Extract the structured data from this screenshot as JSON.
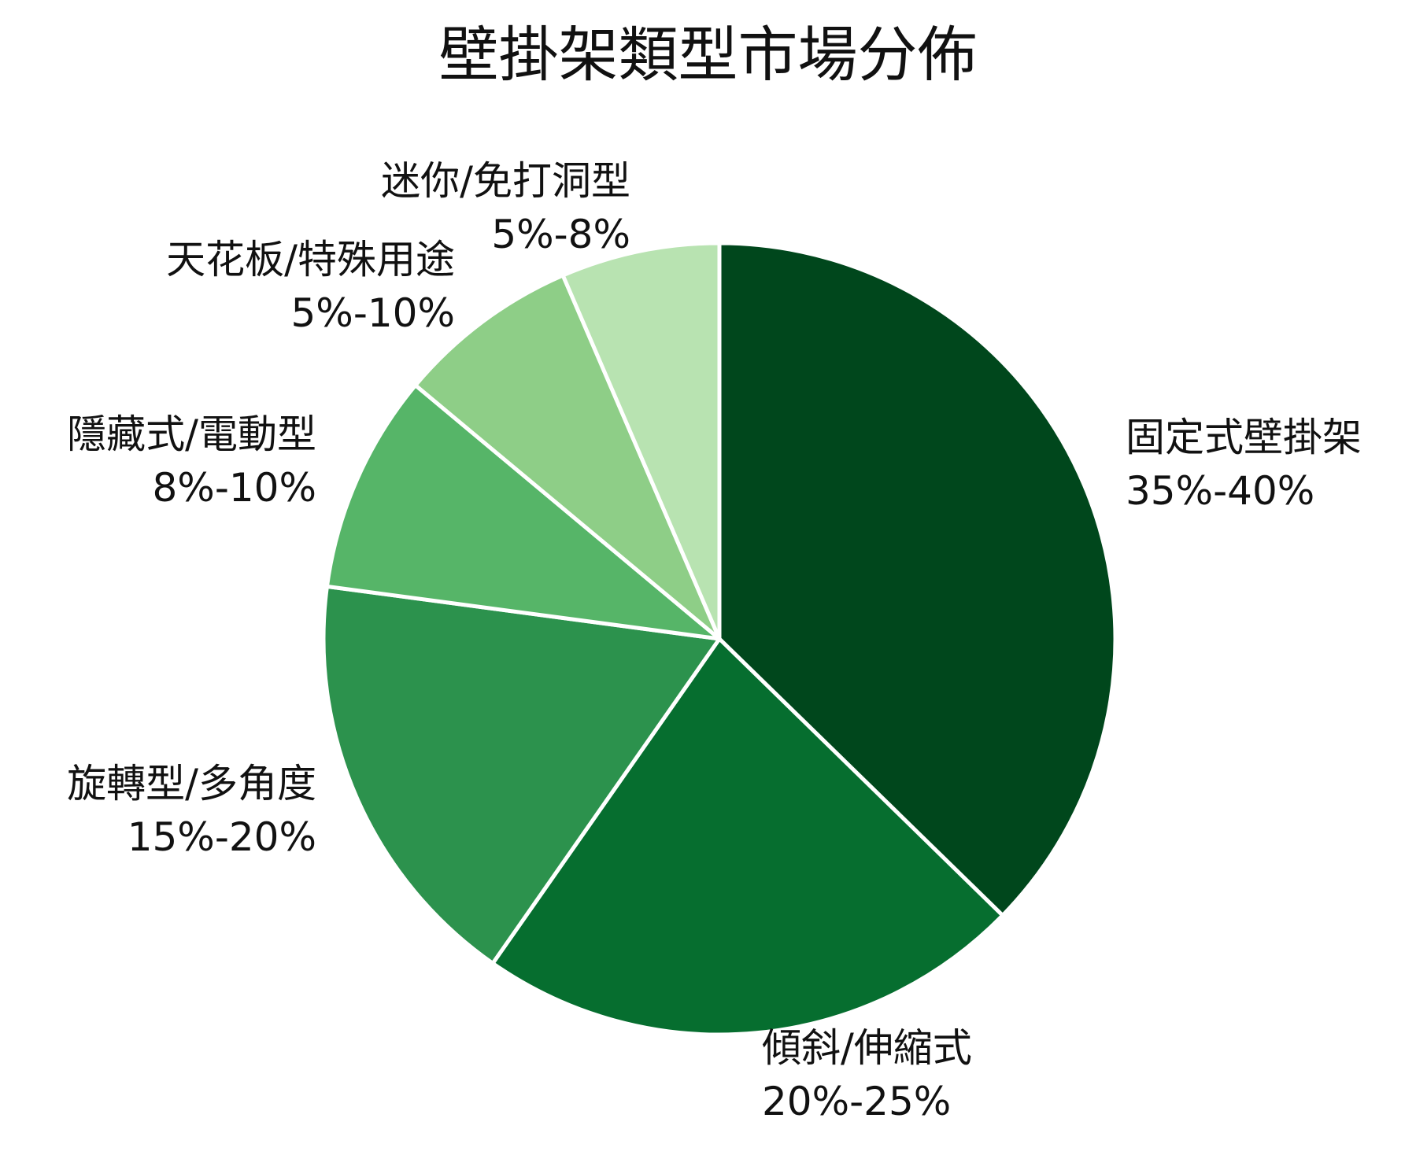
{
  "chart_data": {
    "type": "pie",
    "title": "壁掛架類型市場分佈",
    "slices": [
      {
        "name": "固定式壁掛架",
        "range_label": "35%-40%",
        "value": 37.5,
        "color": "#00471c"
      },
      {
        "name": "傾斜/伸縮式",
        "range_label": "20%-25%",
        "value": 22.5,
        "color": "#066e2f"
      },
      {
        "name": "旋轉型/多角度",
        "range_label": "15%-20%",
        "value": 17.5,
        "color": "#2c924d"
      },
      {
        "name": "隱藏式/電動型",
        "range_label": "8%-10%",
        "value": 9,
        "color": "#56b568"
      },
      {
        "name": "天花板/特殊用途",
        "range_label": "5%-10%",
        "value": 7.5,
        "color": "#8ece87"
      },
      {
        "name": "迷你/免打洞型",
        "range_label": "5%-8%",
        "value": 6.5,
        "color": "#b8e3b1"
      }
    ],
    "start_position": "top",
    "direction": "clockwise",
    "legend": "none"
  }
}
